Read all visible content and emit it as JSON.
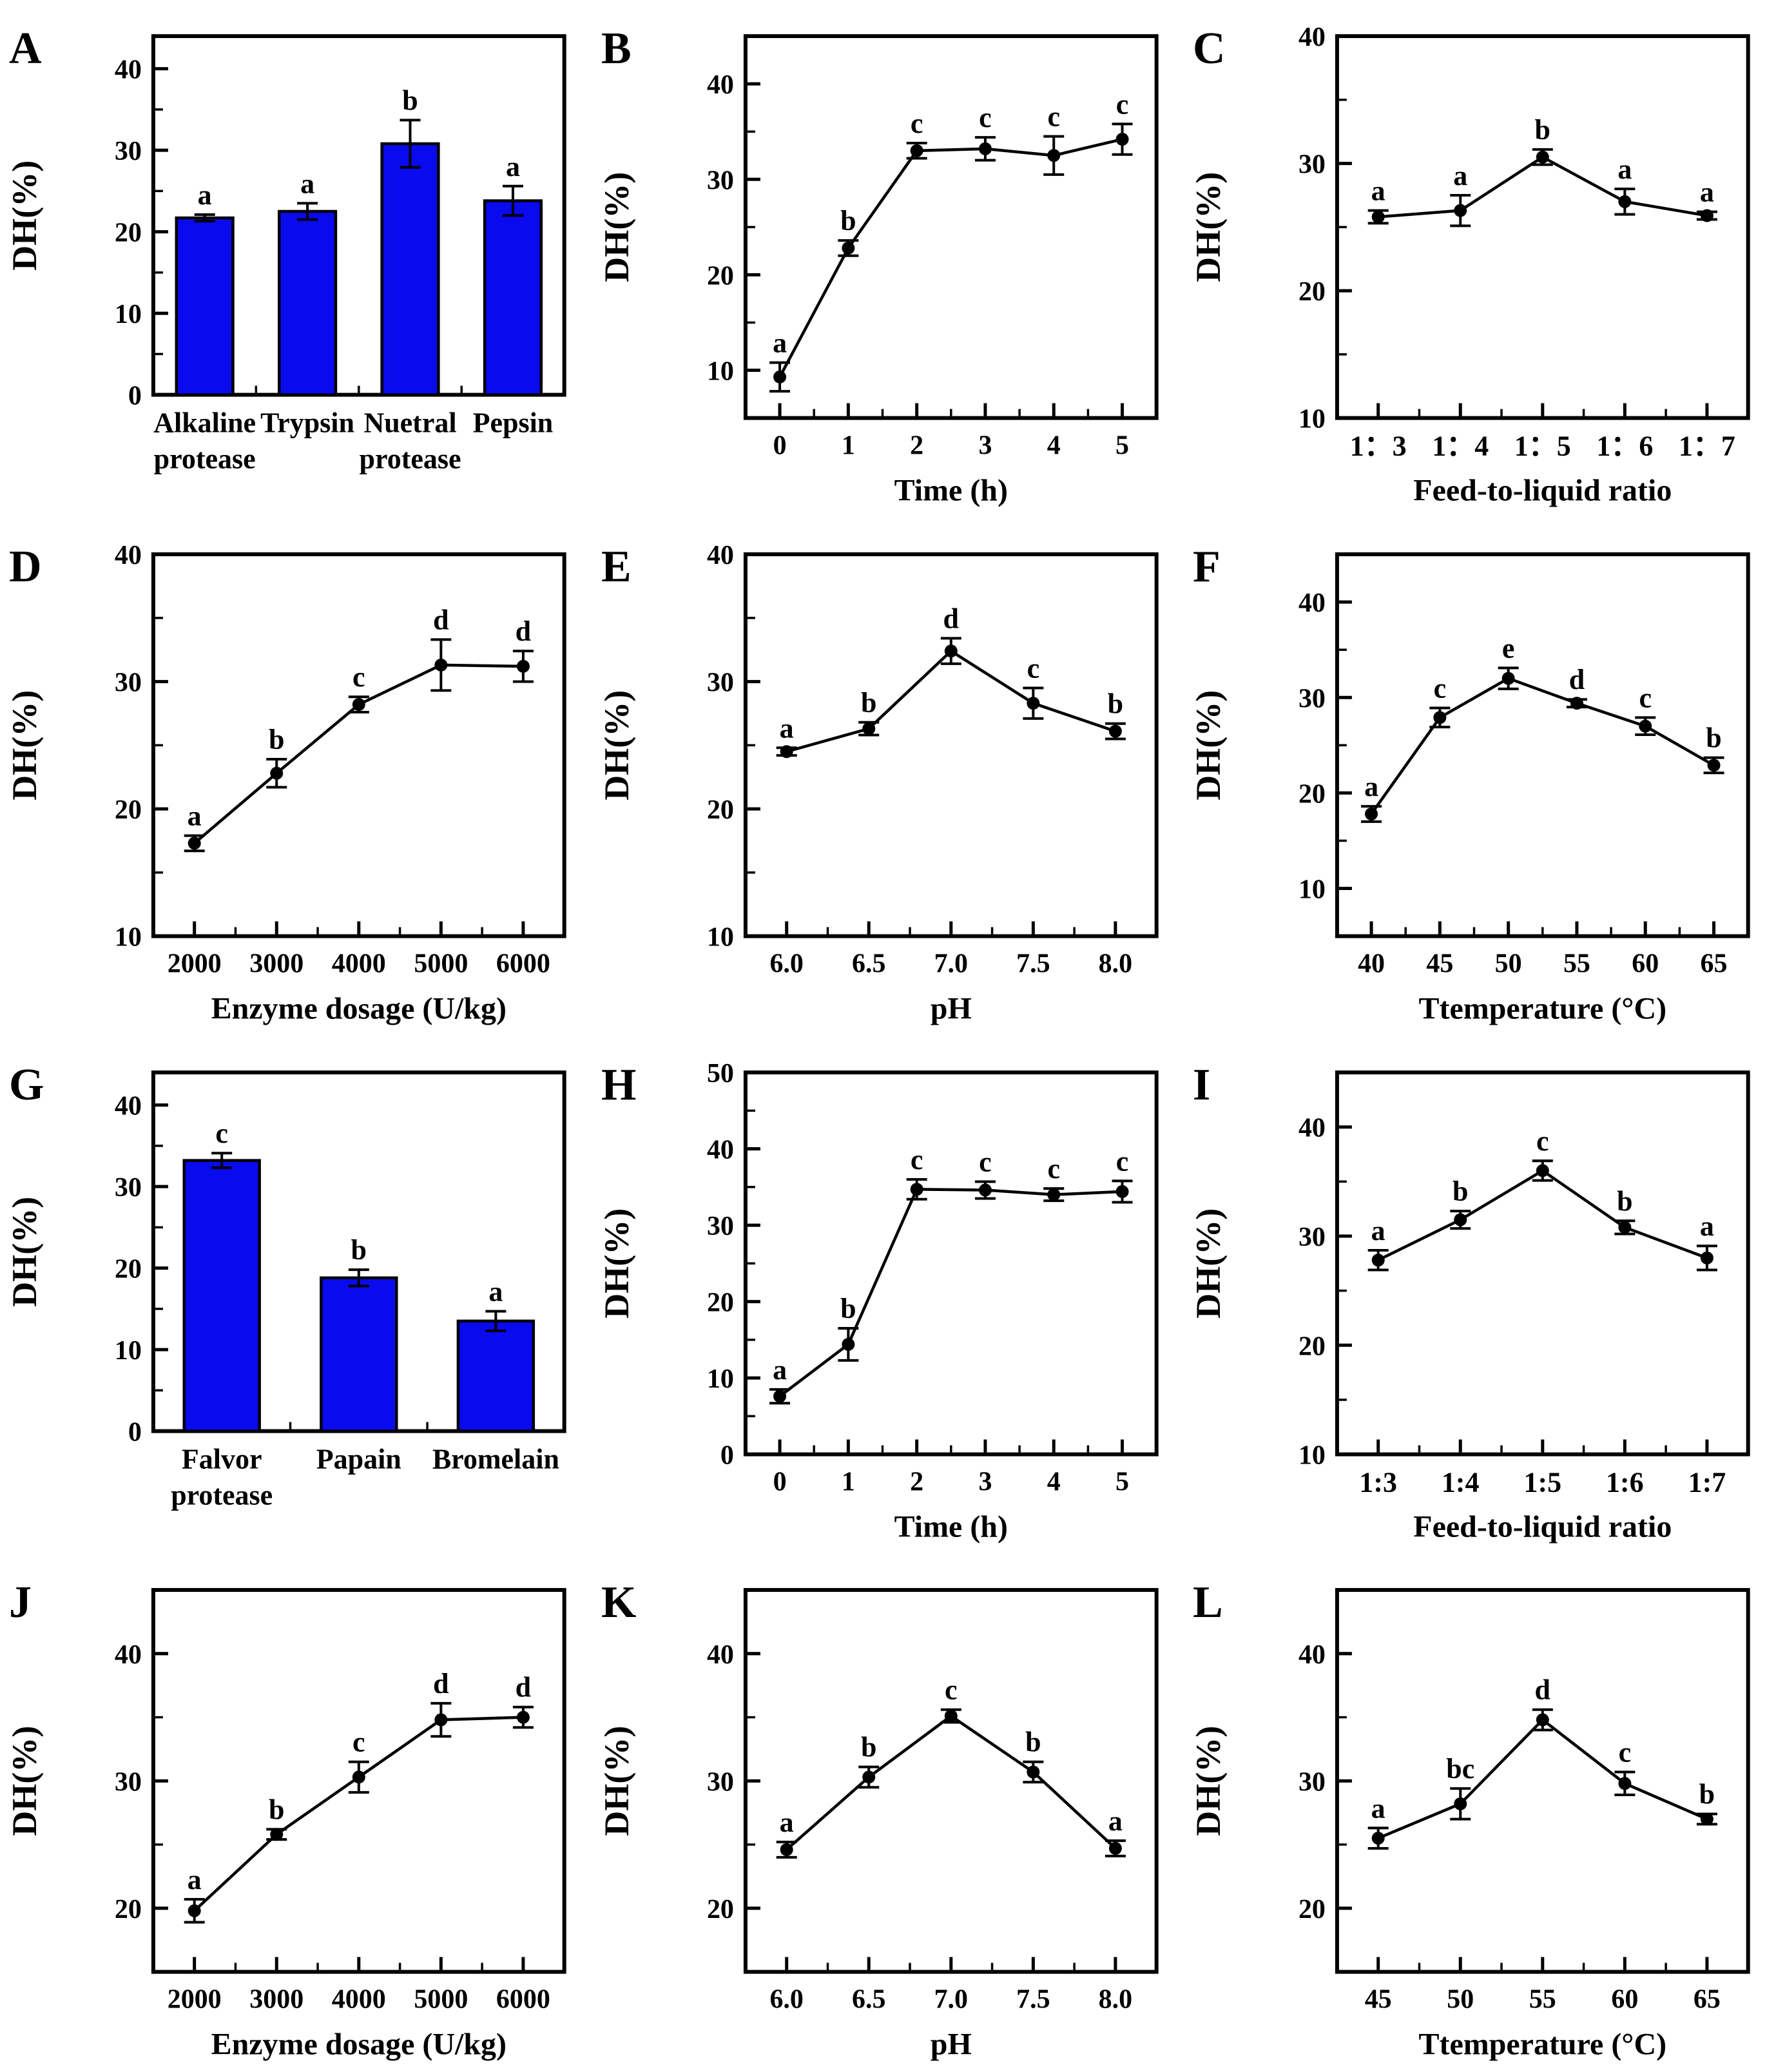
{
  "style": {
    "bar_color": "#0a0aee",
    "line_color": "#000000",
    "marker_color": "#000000",
    "axis_color": "#000000",
    "background": "#ffffff"
  },
  "layout": {
    "columns": 3,
    "rows": 4,
    "grid_on": false,
    "legend": "none"
  },
  "chart_data": [
    {
      "panel": "A",
      "type": "bar",
      "categories": [
        "Alkaline\nprotease",
        "Trypsin",
        "Nuetral\nprotease",
        "Pepsin"
      ],
      "values": [
        21.7,
        22.5,
        30.8,
        23.8
      ],
      "errors": [
        0.4,
        1.0,
        2.9,
        1.8
      ],
      "letters": [
        "a",
        "a",
        "b",
        "a"
      ],
      "title": "",
      "xlabel": "",
      "ylabel": "DH(%)",
      "ylim": [
        0,
        44
      ],
      "yticks": [
        0,
        10,
        20,
        30,
        40
      ]
    },
    {
      "panel": "B",
      "type": "line",
      "x": [
        0,
        1,
        2,
        3,
        4,
        5
      ],
      "xpad": 0.5,
      "xtick_labels": [
        "0",
        "1",
        "2",
        "3",
        "4",
        "5"
      ],
      "values": [
        9.3,
        22.8,
        33.0,
        33.2,
        32.5,
        34.2
      ],
      "errors": [
        1.5,
        0.8,
        0.8,
        1.2,
        2.0,
        1.6
      ],
      "letters": [
        "a",
        "b",
        "c",
        "c",
        "c",
        "c"
      ],
      "title": "",
      "xlabel": "Time (h)",
      "ylabel": "DH(%)",
      "ylim": [
        5,
        45
      ],
      "yticks": [
        10,
        20,
        30,
        40
      ]
    },
    {
      "panel": "C",
      "type": "line",
      "categories": [
        "1：3",
        "1：4",
        "1：5",
        "1：6",
        "1：7"
      ],
      "values": [
        25.8,
        26.3,
        30.5,
        27.0,
        25.9
      ],
      "errors": [
        0.5,
        1.2,
        0.6,
        1.0,
        0.3
      ],
      "letters": [
        "a",
        "a",
        "b",
        "a",
        "a"
      ],
      "title": "",
      "xlabel": "Feed-to-liquid ratio",
      "ylabel": "DH(%)",
      "ylim": [
        10,
        40
      ],
      "yticks": [
        10,
        20,
        30,
        40
      ]
    },
    {
      "panel": "D",
      "type": "line",
      "x": [
        2000,
        3000,
        4000,
        5000,
        6000
      ],
      "xpad": 500,
      "xtick_labels": [
        "2000",
        "3000",
        "4000",
        "5000",
        "6000"
      ],
      "values": [
        17.3,
        22.8,
        28.2,
        31.3,
        31.2
      ],
      "errors": [
        0.6,
        1.1,
        0.6,
        2.0,
        1.2
      ],
      "letters": [
        "a",
        "b",
        "c",
        "d",
        "d"
      ],
      "title": "",
      "xlabel": "Enzyme dosage (U/kg)",
      "ylabel": "DH(%)",
      "ylim": [
        10,
        40
      ],
      "yticks": [
        10,
        20,
        30,
        40
      ]
    },
    {
      "panel": "E",
      "type": "line",
      "x": [
        6.0,
        6.5,
        7.0,
        7.5,
        8.0
      ],
      "xpad": 0.25,
      "xtick_labels": [
        "6.0",
        "6.5",
        "7.0",
        "7.5",
        "8.0"
      ],
      "values": [
        24.5,
        26.3,
        32.4,
        28.3,
        26.1
      ],
      "errors": [
        0.3,
        0.5,
        1.0,
        1.2,
        0.6
      ],
      "letters": [
        "a",
        "b",
        "d",
        "c",
        "b"
      ],
      "title": "",
      "xlabel": "pH",
      "ylabel": "DH(%)",
      "ylim": [
        10,
        40
      ],
      "yticks": [
        10,
        20,
        30,
        40
      ]
    },
    {
      "panel": "F",
      "type": "line",
      "x": [
        40,
        45,
        50,
        55,
        60,
        65
      ],
      "xpad": 2.5,
      "xtick_labels": [
        "40",
        "45",
        "50",
        "55",
        "60",
        "65"
      ],
      "values": [
        17.8,
        27.9,
        32.0,
        29.4,
        27.0,
        22.9
      ],
      "errors": [
        0.8,
        1.0,
        1.1,
        0.4,
        0.9,
        0.8
      ],
      "letters": [
        "a",
        "c",
        "e",
        "d",
        "c",
        "b"
      ],
      "title": "",
      "xlabel": "Ttemperature (°C)",
      "ylabel": "DH(%)",
      "ylim": [
        5,
        45
      ],
      "yticks": [
        10,
        20,
        30,
        40
      ]
    },
    {
      "panel": "G",
      "type": "bar",
      "categories": [
        "Falvor\nprotease",
        "Papain",
        "Bromelain"
      ],
      "values": [
        33.2,
        18.8,
        13.5
      ],
      "errors": [
        0.9,
        1.0,
        1.2
      ],
      "letters": [
        "c",
        "b",
        "a"
      ],
      "title": "",
      "xlabel": "",
      "ylabel": "DH(%)",
      "ylim": [
        0,
        44
      ],
      "yticks": [
        0,
        10,
        20,
        30,
        40
      ]
    },
    {
      "panel": "H",
      "type": "line",
      "x": [
        0,
        1,
        2,
        3,
        4,
        5
      ],
      "xpad": 0.5,
      "xtick_labels": [
        "0",
        "1",
        "2",
        "3",
        "4",
        "5"
      ],
      "values": [
        7.6,
        14.4,
        34.7,
        34.6,
        34.0,
        34.4
      ],
      "errors": [
        0.9,
        2.1,
        1.3,
        1.1,
        0.8,
        1.4
      ],
      "letters": [
        "a",
        "b",
        "c",
        "c",
        "c",
        "c"
      ],
      "title": "",
      "xlabel": "Time (h)",
      "ylabel": "DH(%)",
      "ylim": [
        0,
        50
      ],
      "yticks": [
        0,
        10,
        20,
        30,
        40,
        50
      ]
    },
    {
      "panel": "I",
      "type": "line",
      "categories": [
        "1:3",
        "1:4",
        "1:5",
        "1:6",
        "1:7"
      ],
      "values": [
        27.8,
        31.5,
        36.0,
        30.8,
        28.0
      ],
      "errors": [
        0.9,
        0.8,
        0.9,
        0.6,
        1.1
      ],
      "letters": [
        "a",
        "b",
        "c",
        "b",
        "a"
      ],
      "title": "",
      "xlabel": "Feed-to-liquid ratio",
      "ylabel": "DH(%)",
      "ylim": [
        10,
        45
      ],
      "yticks": [
        10,
        20,
        30,
        40
      ]
    },
    {
      "panel": "J",
      "type": "line",
      "x": [
        2000,
        3000,
        4000,
        5000,
        6000
      ],
      "xpad": 500,
      "xtick_labels": [
        "2000",
        "3000",
        "4000",
        "5000",
        "6000"
      ],
      "values": [
        19.8,
        25.8,
        30.3,
        34.8,
        35.0
      ],
      "errors": [
        0.9,
        0.4,
        1.2,
        1.3,
        0.8
      ],
      "letters": [
        "a",
        "b",
        "c",
        "d",
        "d"
      ],
      "title": "",
      "xlabel": "Enzyme dosage (U/kg)",
      "ylabel": "DH(%)",
      "ylim": [
        15,
        45
      ],
      "yticks": [
        20,
        30,
        40
      ]
    },
    {
      "panel": "K",
      "type": "line",
      "x": [
        6.0,
        6.5,
        7.0,
        7.5,
        8.0
      ],
      "xpad": 0.25,
      "xtick_labels": [
        "6.0",
        "6.5",
        "7.0",
        "7.5",
        "8.0"
      ],
      "values": [
        24.6,
        30.3,
        35.1,
        30.7,
        24.7
      ],
      "errors": [
        0.6,
        0.8,
        0.5,
        0.8,
        0.6
      ],
      "letters": [
        "a",
        "b",
        "c",
        "b",
        "a"
      ],
      "title": "",
      "xlabel": "pH",
      "ylabel": "DH(%)",
      "ylim": [
        15,
        45
      ],
      "yticks": [
        20,
        30,
        40
      ]
    },
    {
      "panel": "L",
      "type": "line",
      "x": [
        45,
        50,
        55,
        60,
        65
      ],
      "xpad": 2.5,
      "xtick_labels": [
        "45",
        "50",
        "55",
        "60",
        "65"
      ],
      "values": [
        25.5,
        28.2,
        34.8,
        29.8,
        27.0
      ],
      "errors": [
        0.8,
        1.2,
        0.8,
        0.9,
        0.4
      ],
      "letters": [
        "a",
        "bc",
        "d",
        "c",
        "b"
      ],
      "title": "",
      "xlabel": "Ttemperature (°C)",
      "ylabel": "DH(%)",
      "ylim": [
        15,
        45
      ],
      "yticks": [
        20,
        30,
        40
      ]
    }
  ]
}
